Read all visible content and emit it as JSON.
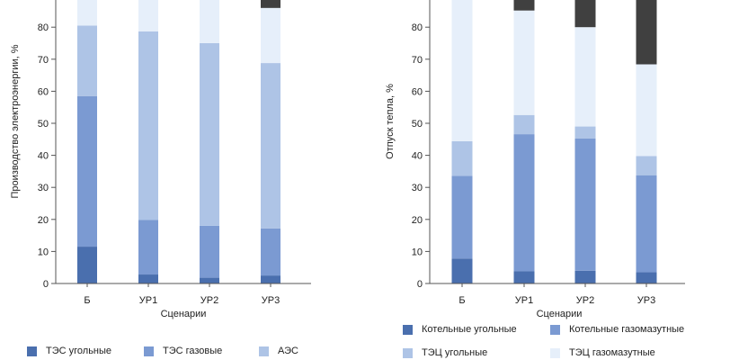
{
  "chart_data": [
    {
      "type": "bar",
      "stacked": true,
      "categories": [
        "Б",
        "УР1",
        "УР2",
        "УР3"
      ],
      "xlabel": "Сценарии",
      "ylabel": "Производство электроэнергии, %",
      "ylim": [
        0,
        100
      ],
      "yticks": [
        0,
        10,
        20,
        30,
        40,
        50,
        60,
        70,
        80
      ],
      "series": [
        {
          "name": "ТЭС угольные",
          "color": "#4a6fae",
          "values": [
            11.5,
            2.8,
            1.8,
            2.5
          ]
        },
        {
          "name": "ТЭС газовые",
          "color": "#7b9ad2",
          "values": [
            47.0,
            17.0,
            16.2,
            14.7
          ]
        },
        {
          "name": "АЭС",
          "color": "#aec4e6",
          "values": [
            22.0,
            58.9,
            57.0,
            51.6
          ]
        },
        {
          "name": "",
          "color": "#e6effa",
          "values": [
            19.5,
            21.3,
            25.0,
            17.2
          ]
        },
        {
          "name": "",
          "color": "#404040",
          "values": [
            0,
            0,
            0,
            14.0
          ]
        }
      ]
    },
    {
      "type": "bar",
      "stacked": true,
      "categories": [
        "Б",
        "УР1",
        "УР2",
        "УР3"
      ],
      "xlabel": "Сценарии",
      "ylabel": "Отпуск тепла, %",
      "ylim": [
        0,
        100
      ],
      "yticks": [
        0,
        10,
        20,
        30,
        40,
        50,
        60,
        70,
        80
      ],
      "series": [
        {
          "name": "Котельные угольные",
          "color": "#4a6fae",
          "values": [
            7.8,
            3.8,
            4.0,
            3.5
          ]
        },
        {
          "name": "Котельные газомазутные",
          "color": "#7b9ad2",
          "values": [
            25.8,
            42.8,
            41.3,
            30.3
          ]
        },
        {
          "name": "ТЭЦ угольные",
          "color": "#aec4e6",
          "values": [
            10.8,
            6.0,
            3.7,
            6.0
          ]
        },
        {
          "name": "ТЭЦ газомазутные",
          "color": "#e6effa",
          "values": [
            55.6,
            32.6,
            31.0,
            28.6
          ]
        },
        {
          "name": "",
          "color": "#404040",
          "values": [
            0,
            14.8,
            20.0,
            31.6
          ]
        }
      ]
    }
  ]
}
